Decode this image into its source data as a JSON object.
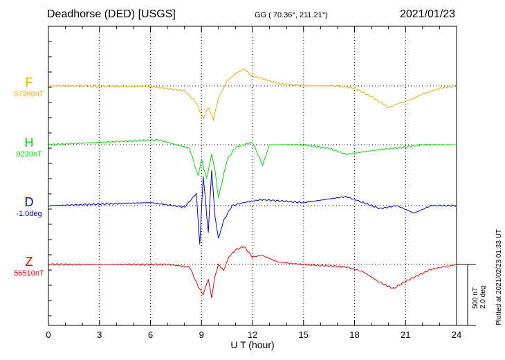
{
  "header": {
    "station": "Deadhorse (DED)  [USGS]",
    "coords": "GG ( 70.36°, 211.21°)",
    "date": "2021/01/23"
  },
  "components": [
    {
      "letter": "F",
      "baseline": "57260nT",
      "color": "#f0a800"
    },
    {
      "letter": "H",
      "baseline": "9230nT",
      "color": "#00dd00"
    },
    {
      "letter": "D",
      "baseline": "-1.0deg",
      "color": "#0000dd"
    },
    {
      "letter": "Z",
      "baseline": "56510nT",
      "color": "#ee0000"
    }
  ],
  "scale": {
    "nt": "500 nT",
    "deg": "2.0 deg"
  },
  "plotted_note": "Plotted at 2021/02/23 01:33 UT",
  "chart_data": {
    "type": "line",
    "xlabel": "U T (hour)",
    "xlim": [
      0,
      24
    ],
    "xticks": [
      0,
      3,
      6,
      9,
      12,
      15,
      18,
      21,
      24
    ],
    "grid": true,
    "series": [
      {
        "name": "F",
        "unit": "nT",
        "x": [
          0,
          6,
          8,
          8.7,
          9.1,
          9.4,
          9.7,
          10.0,
          10.5,
          11.0,
          11.5,
          12.0,
          12.6,
          13.5,
          15,
          17,
          18,
          19,
          20,
          20.5,
          21,
          22,
          23,
          24
        ],
        "y": [
          0,
          -5,
          -40,
          -140,
          -270,
          -180,
          -280,
          -100,
          40,
          100,
          140,
          80,
          60,
          20,
          0,
          0,
          -20,
          -90,
          -180,
          -150,
          -130,
          -70,
          -20,
          0
        ]
      },
      {
        "name": "H",
        "unit": "nT",
        "x": [
          0,
          3,
          6.5,
          7.5,
          8.3,
          8.8,
          9.0,
          9.3,
          9.6,
          9.8,
          10.0,
          10.5,
          11,
          12,
          12.6,
          13,
          15,
          16.5,
          17.5,
          18.5,
          19.5,
          21,
          22,
          24
        ],
        "y": [
          0,
          20,
          40,
          0,
          -30,
          -260,
          -120,
          -280,
          -80,
          -220,
          -440,
          -130,
          -20,
          20,
          -170,
          0,
          0,
          -30,
          -80,
          -60,
          -40,
          -20,
          0,
          0
        ]
      },
      {
        "name": "D",
        "unit": "deg",
        "x": [
          0,
          3,
          6,
          8,
          8.7,
          8.9,
          9.1,
          9.4,
          9.6,
          9.8,
          10.0,
          10.3,
          10.8,
          11.5,
          12.5,
          15,
          17.5,
          18.5,
          19.5,
          20.5,
          21.5,
          22.5,
          24
        ],
        "y": [
          0,
          0.05,
          0.1,
          -0.05,
          0.4,
          -1.3,
          1.0,
          -0.9,
          1.2,
          -0.4,
          -1.1,
          -0.5,
          0,
          0.1,
          0.2,
          0.1,
          0.3,
          0.1,
          -0.1,
          0,
          -0.25,
          0,
          0
        ]
      },
      {
        "name": "Z",
        "unit": "nT",
        "x": [
          0,
          7,
          8.3,
          8.8,
          9.1,
          9.4,
          9.6,
          9.8,
          10.0,
          10.3,
          10.6,
          11.0,
          11.5,
          12.0,
          12.5,
          13.5,
          15,
          17.5,
          18.5,
          19.5,
          20.3,
          21,
          22.5,
          24
        ],
        "y": [
          0,
          0,
          -20,
          -180,
          -250,
          -120,
          -280,
          -90,
          0,
          -50,
          60,
          120,
          150,
          60,
          80,
          20,
          0,
          -20,
          -60,
          -150,
          -200,
          -140,
          -40,
          0
        ]
      }
    ]
  }
}
